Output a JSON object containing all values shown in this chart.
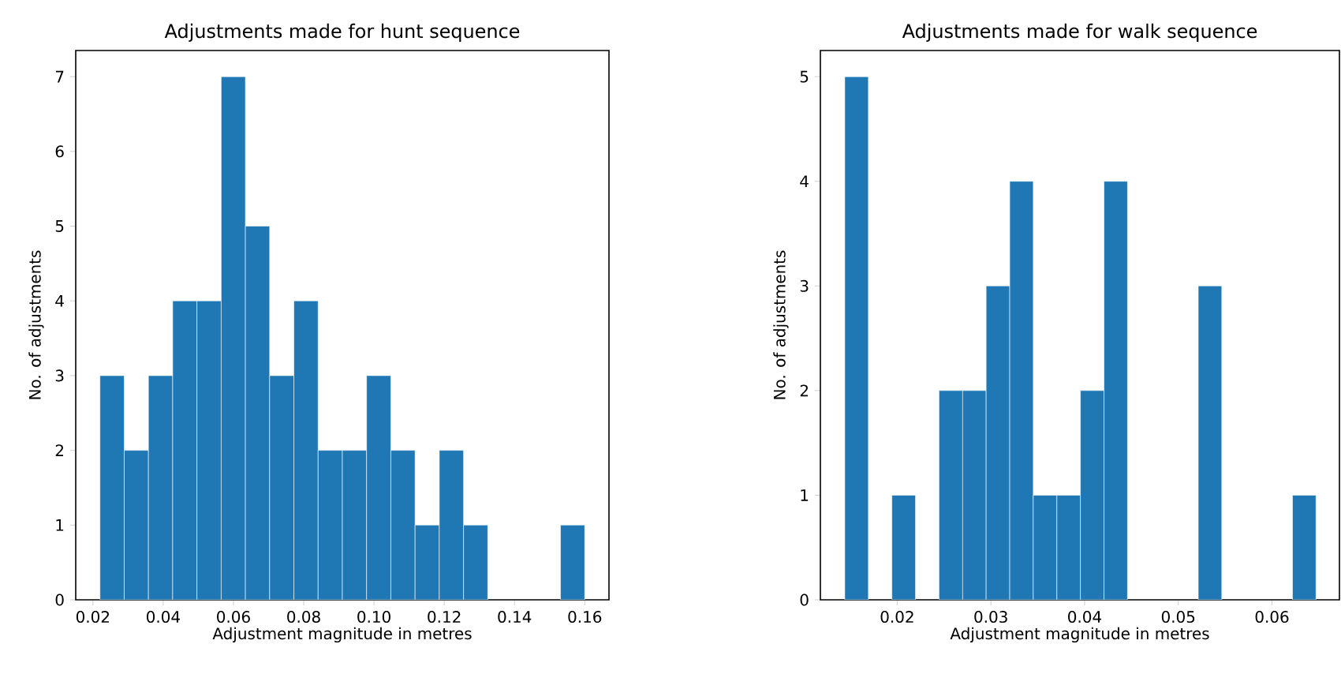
{
  "chart_data": [
    {
      "type": "histogram",
      "title": "Adjustments made for hunt sequence",
      "xlabel": "Adjustment magnitude in metres",
      "ylabel": "No. of adjustments",
      "color": "#1f77b4",
      "bins": [
        0.022,
        0.0289,
        0.0358,
        0.0427,
        0.0496,
        0.0565,
        0.0634,
        0.0703,
        0.0772,
        0.0841,
        0.091,
        0.0979,
        0.1048,
        0.1117,
        0.1186,
        0.1255,
        0.1324,
        0.1393,
        0.1462,
        0.1531,
        0.16
      ],
      "values": [
        3,
        2,
        3,
        4,
        4,
        7,
        5,
        3,
        4,
        2,
        2,
        3,
        2,
        1,
        2,
        1,
        0,
        0,
        0,
        1
      ],
      "xlim": [
        0.0151,
        0.1669
      ],
      "ylim": [
        0,
        7.35
      ],
      "xticks": [
        0.02,
        0.04,
        0.06,
        0.08,
        {
          "value": 0.1,
          "label": "0.10"
        },
        0.12,
        0.14,
        0.16
      ],
      "yticks": [
        0,
        1,
        2,
        3,
        4,
        5,
        6,
        7
      ],
      "grid": false
    },
    {
      "type": "histogram",
      "title": "Adjustments made for walk sequence",
      "xlabel": "Adjustment magnitude in metres",
      "ylabel": "No. of adjustments",
      "color": "#1f77b4",
      "bins": [
        0.0144,
        0.01692,
        0.01943,
        0.02195,
        0.02446,
        0.02698,
        0.02949,
        0.03201,
        0.03452,
        0.03704,
        0.03955,
        0.04207,
        0.04458,
        0.0471,
        0.04961,
        0.05213,
        0.05464,
        0.05716,
        0.05967,
        0.06219,
        0.0647
      ],
      "values": [
        5,
        0,
        1,
        0,
        2,
        2,
        3,
        4,
        1,
        1,
        2,
        4,
        0,
        0,
        0,
        3,
        0,
        0,
        0,
        1
      ],
      "xlim": [
        0.0118,
        0.0672
      ],
      "ylim": [
        0,
        5.25
      ],
      "xticks": [
        0.02,
        0.03,
        0.04,
        0.05,
        0.06
      ],
      "yticks": [
        0,
        1,
        2,
        3,
        4,
        5
      ],
      "grid": false
    }
  ]
}
